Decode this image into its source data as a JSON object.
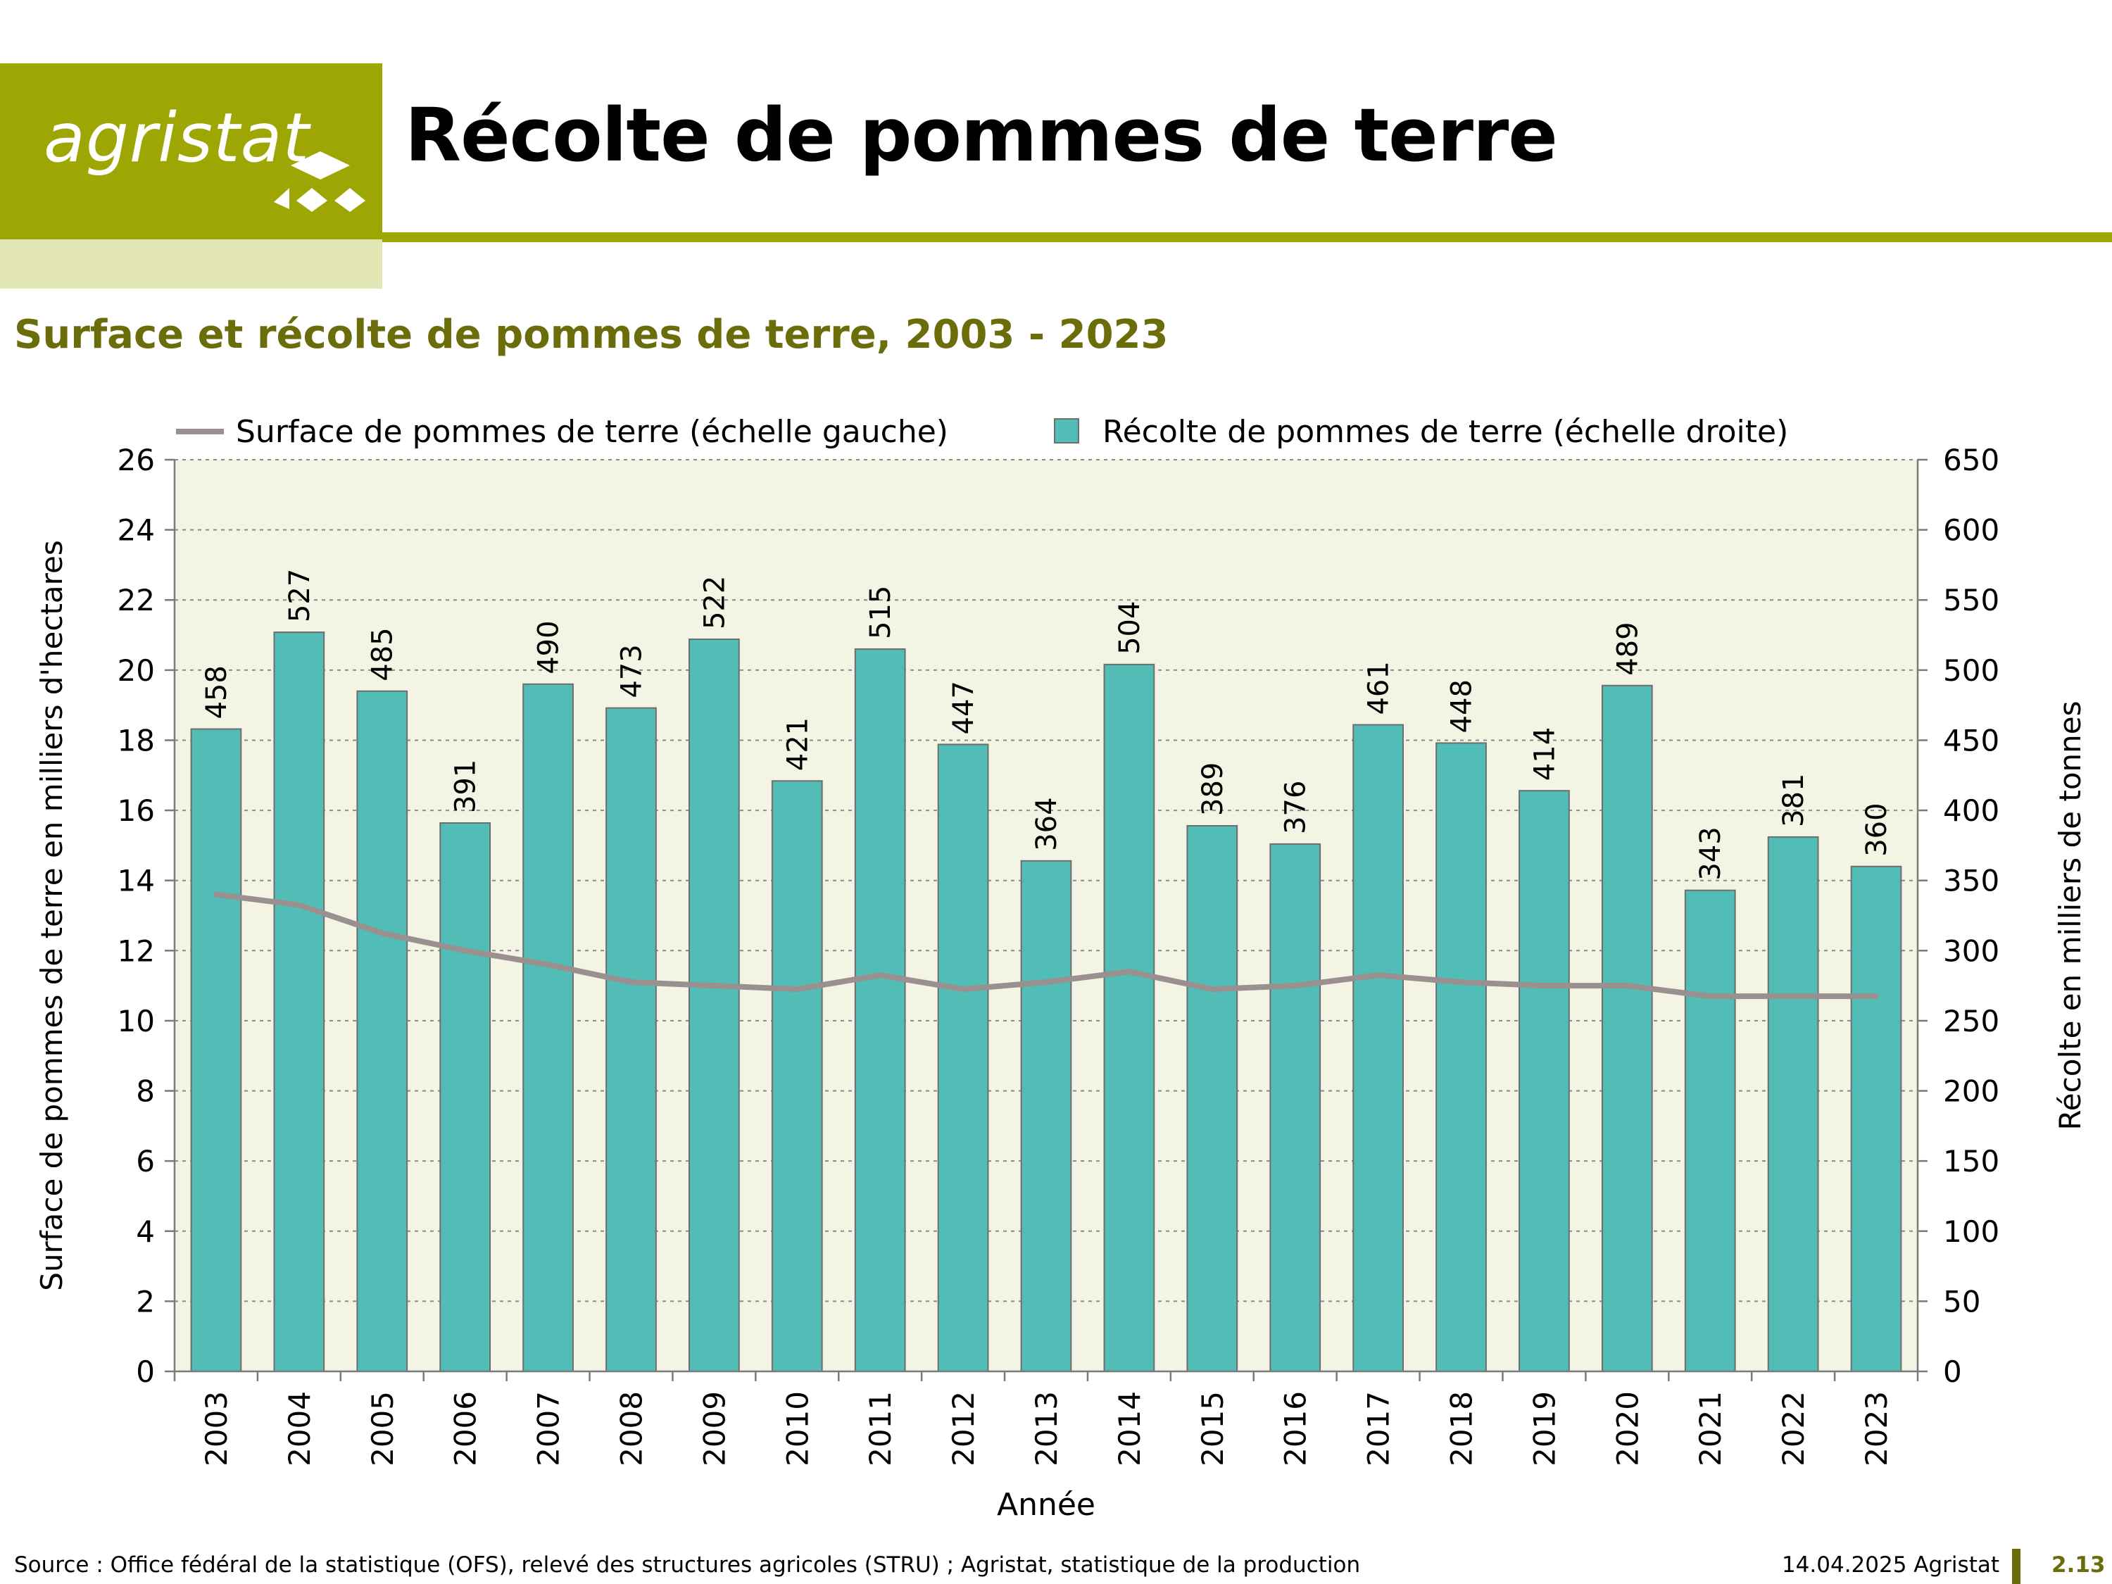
{
  "header": {
    "logo_text": "agristat",
    "title": "Récolte de pommes de terre"
  },
  "chart_title": "Surface et récolte de pommes de terre, 2003 - 2023",
  "footer": {
    "source": "Source : Office fédéral de la statistique (OFS), relevé des structures agricoles (STRU) ; Agristat, statistique de la production",
    "date": "14.04.2025 Agristat",
    "page": "2.13"
  },
  "colors": {
    "brand": "#9da602",
    "brand_dark": "#6b6d0b",
    "bar": "#52bcb6",
    "line": "#9a9090",
    "plot_bg": "#f4f4e4"
  },
  "chart_data": {
    "type": "bar",
    "title": "Surface et récolte de pommes de terre, 2003 - 2023",
    "xlabel": "Année",
    "ylabel_left": "Surface de pommes de terre en milliers d'hectares",
    "ylabel_right": "Récolte en milliers de tonnes",
    "ylim_left": [
      0,
      26
    ],
    "yticks_left": [
      0,
      2,
      4,
      6,
      8,
      10,
      12,
      14,
      16,
      18,
      20,
      22,
      24,
      26
    ],
    "ylim_right": [
      0,
      650
    ],
    "yticks_right": [
      0,
      50,
      100,
      150,
      200,
      250,
      300,
      350,
      400,
      450,
      500,
      550,
      600,
      650
    ],
    "grid": true,
    "legend_position": "top",
    "categories": [
      "2003",
      "2004",
      "2005",
      "2006",
      "2007",
      "2008",
      "2009",
      "2010",
      "2011",
      "2012",
      "2013",
      "2014",
      "2015",
      "2016",
      "2017",
      "2018",
      "2019",
      "2020",
      "2021",
      "2022",
      "2023"
    ],
    "series": [
      {
        "name": "Surface de pommes de terre (échelle gauche)",
        "type": "line",
        "axis": "left",
        "values": [
          13.6,
          13.3,
          12.5,
          12.0,
          11.6,
          11.1,
          11.0,
          10.9,
          11.3,
          10.9,
          11.1,
          11.4,
          10.9,
          11.0,
          11.3,
          11.1,
          11.0,
          11.0,
          10.7,
          10.7,
          10.7
        ]
      },
      {
        "name": "Récolte de pommes de terre (échelle droite)",
        "type": "bar",
        "axis": "right",
        "values": [
          458,
          527,
          485,
          391,
          490,
          473,
          522,
          421,
          515,
          447,
          364,
          504,
          389,
          376,
          461,
          448,
          414,
          489,
          343,
          381,
          360
        ],
        "labels": [
          "458",
          "527",
          "485",
          "391",
          "490",
          "473",
          "522",
          "421",
          "515",
          "447",
          "364",
          "504",
          "389",
          "376",
          "461",
          "448",
          "414",
          "489",
          "343",
          "381",
          "360"
        ]
      }
    ]
  }
}
